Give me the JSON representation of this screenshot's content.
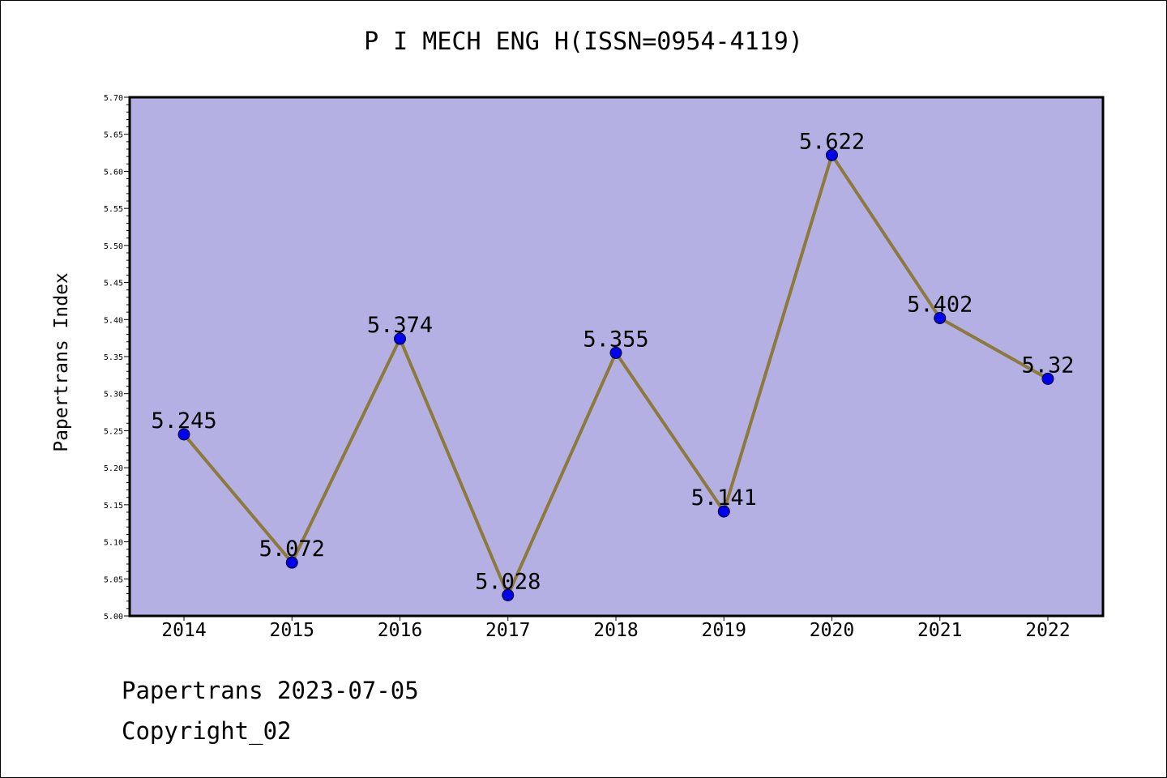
{
  "chart_data": {
    "type": "line",
    "title": "P I MECH ENG H(ISSN=0954-4119)",
    "xlabel": "",
    "ylabel": "Papertrans Index",
    "categories": [
      "2014",
      "2015",
      "2016",
      "2017",
      "2018",
      "2019",
      "2020",
      "2021",
      "2022"
    ],
    "values": [
      5.245,
      5.072,
      5.374,
      5.028,
      5.355,
      5.141,
      5.622,
      5.402,
      5.32
    ],
    "data_labels": [
      "5.245",
      "5.072",
      "5.374",
      "5.028",
      "5.355",
      "5.141",
      "5.622",
      "5.402",
      "5.32"
    ],
    "ylim": [
      5.0,
      5.7
    ],
    "yticks": [
      "5.00",
      "5.05",
      "5.10",
      "5.15",
      "5.20",
      "5.25",
      "5.30",
      "5.35",
      "5.40",
      "5.45",
      "5.50",
      "5.55",
      "5.60",
      "5.65",
      "5.70"
    ],
    "grid": false,
    "legend": "none",
    "colors": {
      "plot_background": "#b5b0e3",
      "line": "#8c7a3c",
      "marker": "#0000ee"
    }
  },
  "footer": {
    "date_line": "Papertrans 2023-07-05",
    "copyright": "Copyright_02"
  }
}
